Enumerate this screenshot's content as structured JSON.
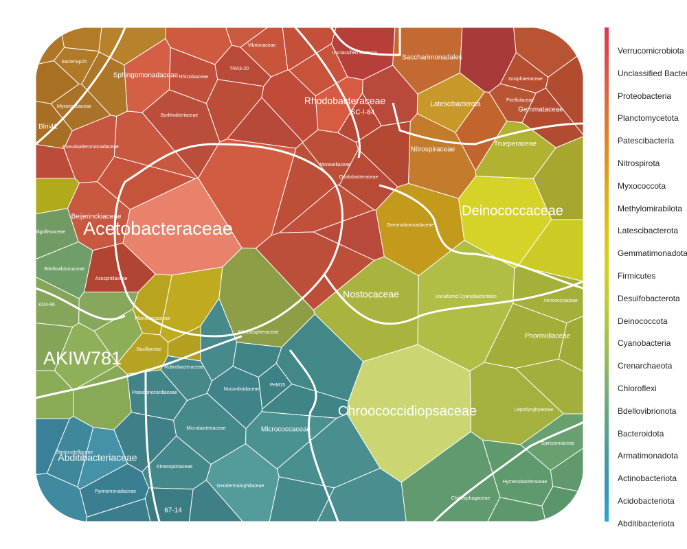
{
  "legend": {
    "items": [
      {
        "label": "Verrucomicrobiota",
        "color": "#dd3a4a"
      },
      {
        "label": "Unclassified Bacteria",
        "color": "#e04848"
      },
      {
        "label": "Proteobacteria",
        "color": "#e05848"
      },
      {
        "label": "Planctomycetota",
        "color": "#e06838"
      },
      {
        "label": "Patescibacteria",
        "color": "#e07830"
      },
      {
        "label": "Nitrospirota",
        "color": "#e08828"
      },
      {
        "label": "Myxococcota",
        "color": "#e09a20"
      },
      {
        "label": "Methylomirabilota",
        "color": "#e0aa18"
      },
      {
        "label": "Latescibacterota",
        "color": "#e0ba18"
      },
      {
        "label": "Gemmatimonadota",
        "color": "#dcc818"
      },
      {
        "label": "Firmicutes",
        "color": "#d4d020"
      },
      {
        "label": "Desulfobacterota",
        "color": "#c8d028"
      },
      {
        "label": "Deinococcota",
        "color": "#b8cc38"
      },
      {
        "label": "Cyanobacteria",
        "color": "#a8c448"
      },
      {
        "label": "Crenarchaeota",
        "color": "#94bc58"
      },
      {
        "label": "Chloroflexi",
        "color": "#80b468"
      },
      {
        "label": "Bdellovibrionota",
        "color": "#6cac78"
      },
      {
        "label": "Bacteroidota",
        "color": "#5aa488"
      },
      {
        "label": "Armatimonadota",
        "color": "#4a9c98"
      },
      {
        "label": "Actinobacteriota",
        "color": "#3c98aa"
      },
      {
        "label": "Acidobacteriota",
        "color": "#3498c0"
      },
      {
        "label": "Abditibacteriota",
        "color": "#30a4d8"
      }
    ]
  },
  "cells": [
    {
      "label": "Acetobacteraceae",
      "color": "#e8826a",
      "size": "xl"
    },
    {
      "label": "Rhodobacteraceae",
      "color": "#d75b40",
      "size": "md"
    },
    {
      "label": "Sphingomonadaceae",
      "color": "#d35f44",
      "size": "sm"
    },
    {
      "label": "Pseudoalteromonadaceae",
      "color": "#c75641",
      "size": "xs"
    },
    {
      "label": "Beijerinckiaceae",
      "color": "#c95840",
      "size": "sm"
    },
    {
      "label": "Burkholderiaceae",
      "color": "#bb4e3a",
      "size": "xs"
    },
    {
      "label": "Vibrionaceae",
      "color": "#c9543c",
      "size": "xs"
    },
    {
      "label": "Rhizobiaceae",
      "color": "#c24f3b",
      "size": "xs"
    },
    {
      "label": "TRA3-20",
      "color": "#b94a38",
      "size": "xs"
    },
    {
      "label": "SC-I-84",
      "color": "#b84835",
      "size": "sm"
    },
    {
      "label": "Moraxellaceae",
      "color": "#bd4e38",
      "size": "xs"
    },
    {
      "label": "Oxalobacteraceae",
      "color": "#b84a36",
      "size": "xs"
    },
    {
      "label": "Azospirillaceae",
      "color": "#b24434",
      "size": "xs"
    },
    {
      "label": "Unclassified Bacteria",
      "color": "#b63f3a",
      "size": "xs"
    },
    {
      "label": "Saccharimonadales",
      "color": "#c36a32",
      "size": "sm"
    },
    {
      "label": "Isosphaeraceae",
      "color": "#b64f32",
      "size": "xs"
    },
    {
      "label": "Pirellulaceae",
      "color": "#b95532",
      "size": "xs"
    },
    {
      "label": "Gemmataceae",
      "color": "#b24c30",
      "size": "sm"
    },
    {
      "label": "Latescibacterota",
      "color": "#c9982a",
      "size": "sm"
    },
    {
      "label": "Nitrospiraceae",
      "color": "#c37c2c",
      "size": "sm"
    },
    {
      "label": "Gemmatimonadaceae",
      "color": "#c39a1c",
      "size": "xs"
    },
    {
      "label": "Trueperaceae",
      "color": "#b2b232",
      "size": "sm"
    },
    {
      "label": "Deinococcaceae",
      "color": "#d5d228",
      "size": "lg"
    },
    {
      "label": "Nostocaceae",
      "color": "#a9b43e",
      "size": "md"
    },
    {
      "label": "Uncultured Cyanobacteriales",
      "color": "#b0be46",
      "size": "xs"
    },
    {
      "label": "Xenococcaceae",
      "color": "#a4b03a",
      "size": "xs"
    },
    {
      "label": "Phormidiaceae",
      "color": "#a2ae38",
      "size": "sm"
    },
    {
      "label": "Leptolyngbyaceae",
      "color": "#a5b13e",
      "size": "xs"
    },
    {
      "label": "Chroococcidiopsaceae",
      "color": "#cbd572",
      "size": "lg"
    },
    {
      "label": "Nitrosospheraceae",
      "color": "#8d9e46",
      "size": "xs"
    },
    {
      "label": "Planococcaceae",
      "color": "#b8a41e",
      "size": "xs"
    },
    {
      "label": "Bacillaceae",
      "color": "#b7a322",
      "size": "xs"
    },
    {
      "label": "AKIW781",
      "color": "#8fb058",
      "size": "xl"
    },
    {
      "label": "KD4-96",
      "color": "#85a65a",
      "size": "xs"
    },
    {
      "label": "Bdellovibrionaceae",
      "color": "#6f9e68",
      "size": "xs"
    },
    {
      "label": "Spirosomaceae",
      "color": "#68a070",
      "size": "xs"
    },
    {
      "label": "Hymenobacteraceae",
      "color": "#5f9a6c",
      "size": "xs"
    },
    {
      "label": "Chitinophagaceae",
      "color": "#619a6e",
      "size": "xs"
    },
    {
      "label": "Rubrobacteraceae",
      "color": "#47898a",
      "size": "xs"
    },
    {
      "label": "Nocardioidaceae",
      "color": "#408388",
      "size": "xs"
    },
    {
      "label": "Pseudonocardiaceae",
      "color": "#428588",
      "size": "xs"
    },
    {
      "label": "PeM15",
      "color": "#3d8186",
      "size": "xs"
    },
    {
      "label": "Microbacteriaceae",
      "color": "#458a8b",
      "size": "xs"
    },
    {
      "label": "Micrococcaceae",
      "color": "#4a9292",
      "size": "sm"
    },
    {
      "label": "Kineosporiaceae",
      "color": "#43888a",
      "size": "xs"
    },
    {
      "label": "Geodermatophilaceae",
      "color": "#549c9b",
      "size": "xs"
    },
    {
      "label": "67-14",
      "color": "#3b7c82",
      "size": "sm"
    },
    {
      "label": "Blastocatellaceae",
      "color": "#3f879a",
      "size": "xs"
    },
    {
      "label": "Pyrinomonadaceae",
      "color": "#3a7e92",
      "size": "xs"
    },
    {
      "label": "Abditibacteriaceae",
      "color": "#4592a8",
      "size": "md"
    },
    {
      "label": "bacteriap25",
      "color": "#b07a28",
      "size": "xs"
    },
    {
      "label": "Myxococcaceae",
      "color": "#a87228",
      "size": "xs"
    },
    {
      "label": "Blrii41",
      "color": "#a86e24",
      "size": "sm"
    },
    {
      "label": "Oligoflexaceae",
      "color": "#719a64",
      "size": "xs"
    }
  ]
}
